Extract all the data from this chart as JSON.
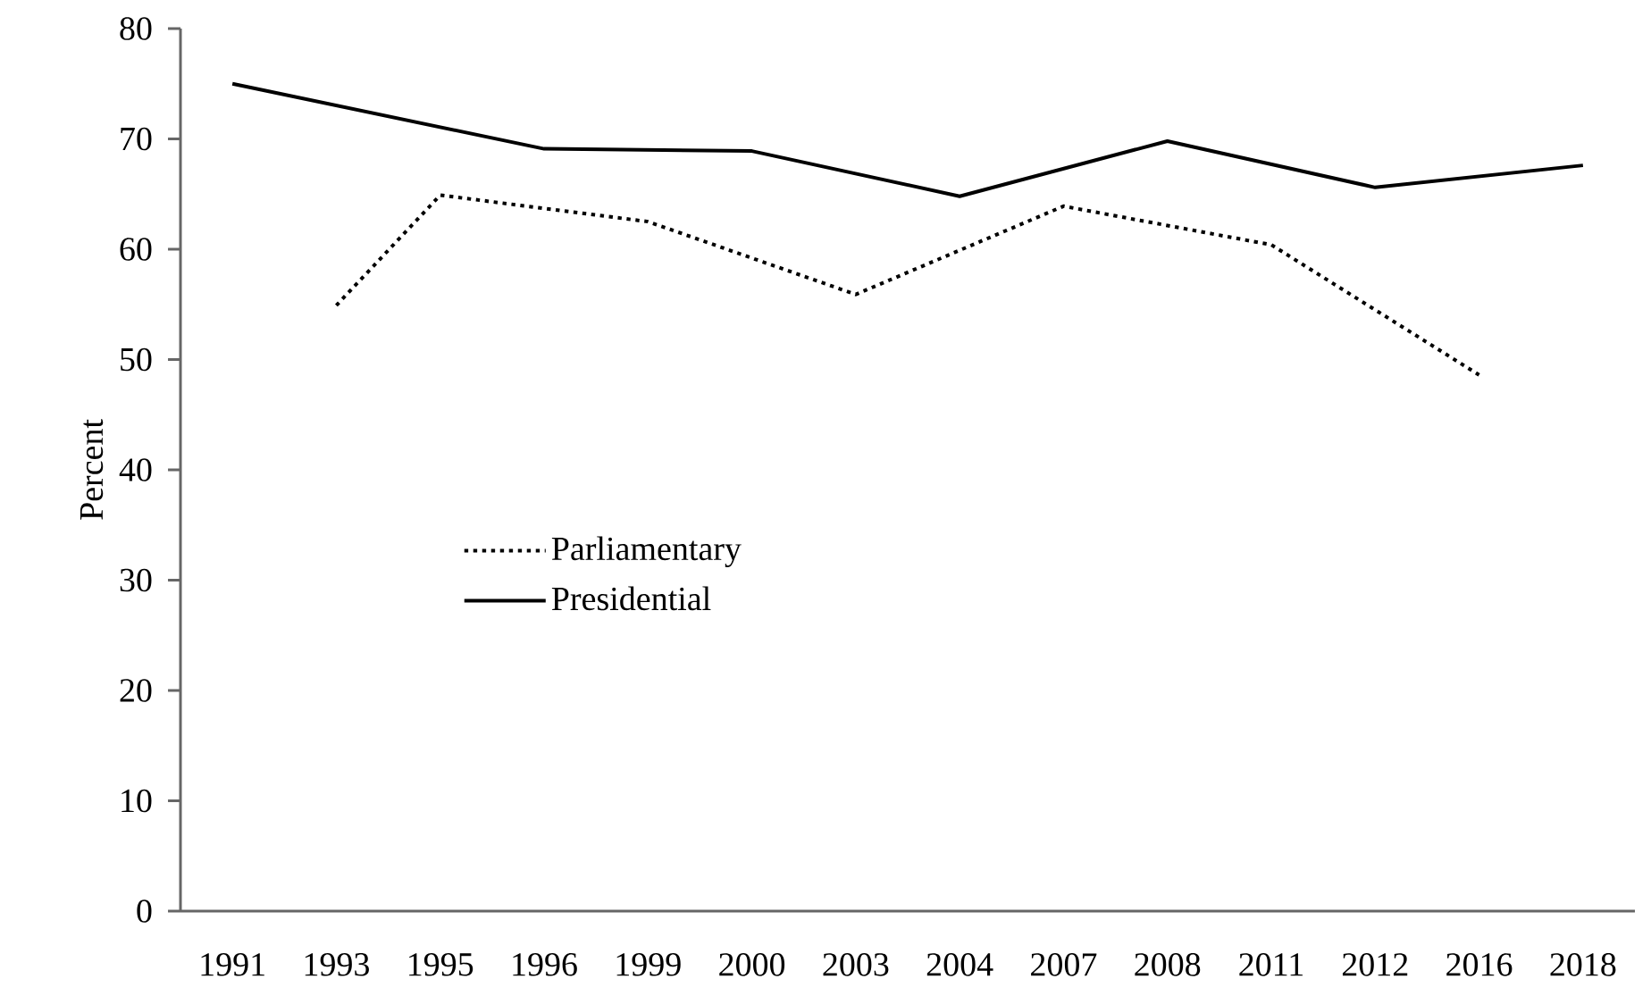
{
  "chart_data": {
    "type": "line",
    "ylabel": "Percent",
    "categories": [
      "1991",
      "1993",
      "1995",
      "1996",
      "1999",
      "2000",
      "2003",
      "2004",
      "2007",
      "2008",
      "2011",
      "2012",
      "2016",
      "2018"
    ],
    "series": [
      {
        "name": "Parliamentary",
        "color": "#000000",
        "line_style": "dotted",
        "values": [
          null,
          54.9,
          64.9,
          null,
          62.5,
          null,
          55.9,
          null,
          63.9,
          null,
          60.4,
          null,
          48.6,
          null
        ]
      },
      {
        "name": "Presidential",
        "color": "#000000",
        "line_style": "solid",
        "values": [
          75.0,
          null,
          null,
          69.1,
          null,
          68.9,
          null,
          64.8,
          null,
          69.8,
          null,
          65.6,
          null,
          67.6
        ]
      }
    ],
    "ylim": [
      0,
      80
    ],
    "yticks": [
      0,
      10,
      20,
      30,
      40,
      50,
      60,
      70,
      80
    ],
    "grid": false,
    "legend": "left",
    "marker": "none"
  }
}
